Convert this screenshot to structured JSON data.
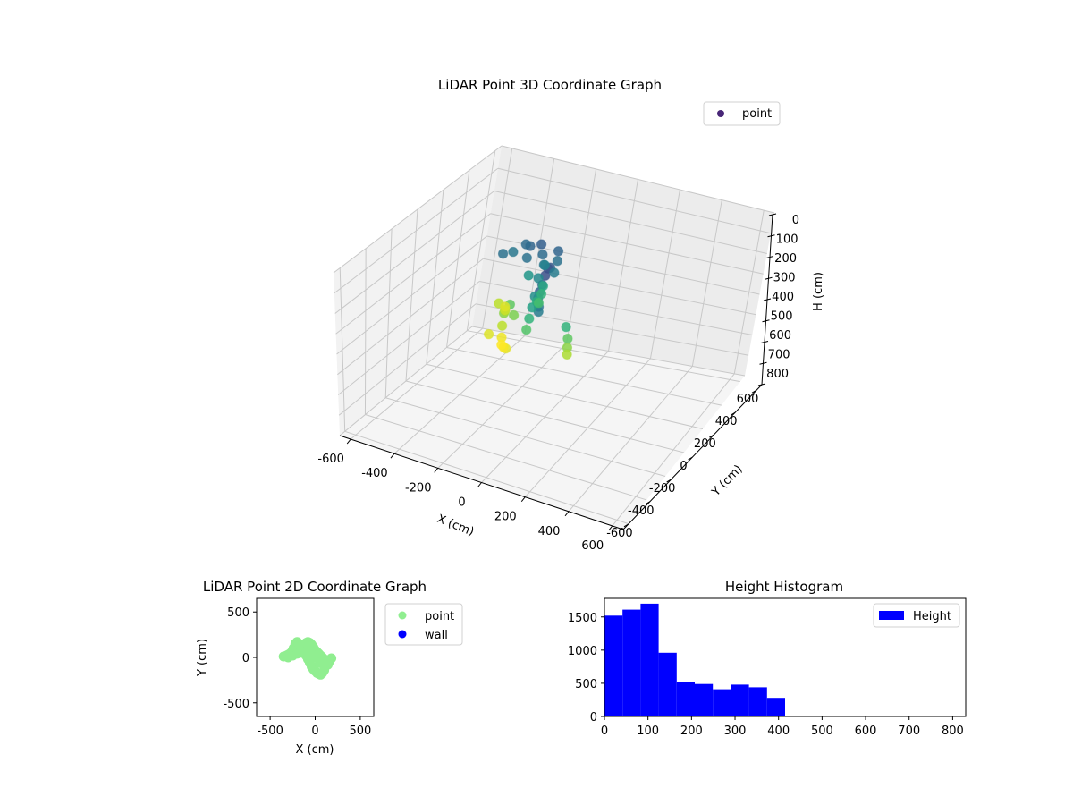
{
  "chart_data": [
    {
      "type": "scatter",
      "projection": "3d",
      "title": "LiDAR Point 3D Coordinate Graph",
      "xlabel": "X (cm)",
      "ylabel": "Y (cm)",
      "zlabel": "H (cm)",
      "xlim": [
        -650,
        650
      ],
      "ylim": [
        -650,
        650
      ],
      "zlim": [
        800,
        0
      ],
      "zaxis_inverted": true,
      "xticks": [
        -600,
        -400,
        -200,
        0,
        200,
        400,
        600
      ],
      "yticks": [
        -600,
        -400,
        -200,
        0,
        200,
        400,
        600
      ],
      "zticks": [
        0,
        100,
        200,
        300,
        400,
        500,
        600,
        700,
        800
      ],
      "grid": true,
      "colormap": "viridis",
      "color_by": "H",
      "legend": {
        "position": "upper-right",
        "entries": [
          {
            "label": "point",
            "color": "#482677"
          }
        ]
      },
      "series": [
        {
          "name": "point",
          "points_xyh": [
            [
              -300,
              100,
              150
            ],
            [
              -280,
              150,
              160
            ],
            [
              -250,
              200,
              140
            ],
            [
              -220,
              180,
              130
            ],
            [
              -200,
              120,
              150
            ],
            [
              -180,
              200,
              120
            ],
            [
              -150,
              160,
              140
            ],
            [
              -120,
              120,
              160
            ],
            [
              -100,
              200,
              130
            ],
            [
              -80,
              160,
              150
            ],
            [
              -60,
              100,
              170
            ],
            [
              -50,
              40,
              110
            ],
            [
              -40,
              0,
              90
            ],
            [
              -30,
              -40,
              100
            ],
            [
              -20,
              -80,
              120
            ],
            [
              -10,
              -120,
              130
            ],
            [
              0,
              -150,
              140
            ],
            [
              10,
              -170,
              150
            ],
            [
              20,
              -180,
              160
            ],
            [
              30,
              -200,
              170
            ],
            [
              -60,
              -60,
              200
            ],
            [
              -50,
              -100,
              230
            ],
            [
              -40,
              -140,
              260
            ],
            [
              -30,
              -180,
              290
            ],
            [
              -70,
              -20,
              250
            ],
            [
              -80,
              20,
              280
            ],
            [
              -90,
              60,
              260
            ],
            [
              -100,
              90,
              240
            ],
            [
              -200,
              -50,
              330
            ],
            [
              -180,
              -100,
              360
            ],
            [
              -160,
              -140,
              390
            ],
            [
              -140,
              -180,
              400
            ],
            [
              -220,
              0,
              350
            ],
            [
              -240,
              40,
              370
            ],
            [
              -260,
              80,
              380
            ],
            [
              -120,
              -200,
              395
            ],
            [
              -100,
              -220,
              385
            ],
            [
              -280,
              60,
              360
            ],
            [
              -190,
              -20,
              300
            ],
            [
              -150,
              -60,
              320
            ],
            [
              120,
              -120,
              260
            ],
            [
              140,
              -140,
              300
            ],
            [
              150,
              -160,
              330
            ],
            [
              160,
              -180,
              350
            ],
            [
              -130,
              150,
              180
            ],
            [
              -110,
              60,
              190
            ],
            [
              -170,
              90,
              210
            ],
            [
              -210,
              -160,
              380
            ]
          ]
        }
      ]
    },
    {
      "type": "scatter",
      "title": "LiDAR Point 2D Coordinate Graph",
      "xlabel": "X (cm)",
      "ylabel": "Y (cm)",
      "xlim": [
        -650,
        650
      ],
      "ylim": [
        -650,
        650
      ],
      "xticks": [
        -500,
        0,
        500
      ],
      "yticks": [
        -500,
        0,
        500
      ],
      "legend": {
        "position": "outside-right",
        "entries": [
          {
            "label": "point",
            "color": "#90ee90"
          },
          {
            "label": "wall",
            "color": "#0000ff"
          }
        ]
      },
      "series": [
        {
          "name": "point",
          "points": [
            [
              -350,
              10
            ],
            [
              -320,
              20
            ],
            [
              -300,
              30
            ],
            [
              -280,
              40
            ],
            [
              -260,
              60
            ],
            [
              -240,
              100
            ],
            [
              -220,
              150
            ],
            [
              -200,
              170
            ],
            [
              -180,
              150
            ],
            [
              -160,
              120
            ],
            [
              -140,
              100
            ],
            [
              -120,
              130
            ],
            [
              -100,
              160
            ],
            [
              -80,
              170
            ],
            [
              -60,
              160
            ],
            [
              -40,
              140
            ],
            [
              -20,
              110
            ],
            [
              0,
              80
            ],
            [
              20,
              60
            ],
            [
              40,
              40
            ],
            [
              60,
              20
            ],
            [
              80,
              0
            ],
            [
              100,
              -20
            ],
            [
              120,
              -50
            ],
            [
              140,
              -80
            ],
            [
              160,
              -40
            ],
            [
              180,
              -10
            ],
            [
              -120,
              60
            ],
            [
              -100,
              20
            ],
            [
              -80,
              -20
            ],
            [
              -60,
              -60
            ],
            [
              -40,
              -100
            ],
            [
              -20,
              -130
            ],
            [
              0,
              -150
            ],
            [
              20,
              -170
            ],
            [
              40,
              -180
            ],
            [
              60,
              -190
            ],
            [
              80,
              -170
            ],
            [
              100,
              -140
            ],
            [
              -300,
              0
            ],
            [
              -250,
              20
            ],
            [
              -200,
              40
            ],
            [
              -150,
              50
            ],
            [
              -100,
              60
            ],
            [
              -50,
              40
            ],
            [
              0,
              0
            ],
            [
              50,
              -60
            ],
            [
              100,
              -100
            ]
          ]
        },
        {
          "name": "wall",
          "points": []
        }
      ]
    },
    {
      "type": "bar",
      "subtype": "histogram",
      "title": "Height Histogram",
      "xlabel": "",
      "ylabel": "",
      "xlim": [
        0,
        830
      ],
      "ylim": [
        0,
        1780
      ],
      "xticks": [
        0,
        100,
        200,
        300,
        400,
        500,
        600,
        700,
        800
      ],
      "yticks": [
        0,
        500,
        1000,
        1500
      ],
      "bin_width": 41.5,
      "bin_start": 0,
      "color": "#0000ff",
      "legend": {
        "position": "upper-right",
        "entries": [
          {
            "label": "Height",
            "color": "#0000ff"
          }
        ]
      },
      "series": [
        {
          "name": "Height",
          "values": [
            1520,
            1610,
            1700,
            960,
            520,
            490,
            410,
            480,
            440,
            280,
            0,
            0,
            0,
            0,
            0,
            0,
            0,
            0,
            0,
            0
          ]
        }
      ]
    }
  ]
}
